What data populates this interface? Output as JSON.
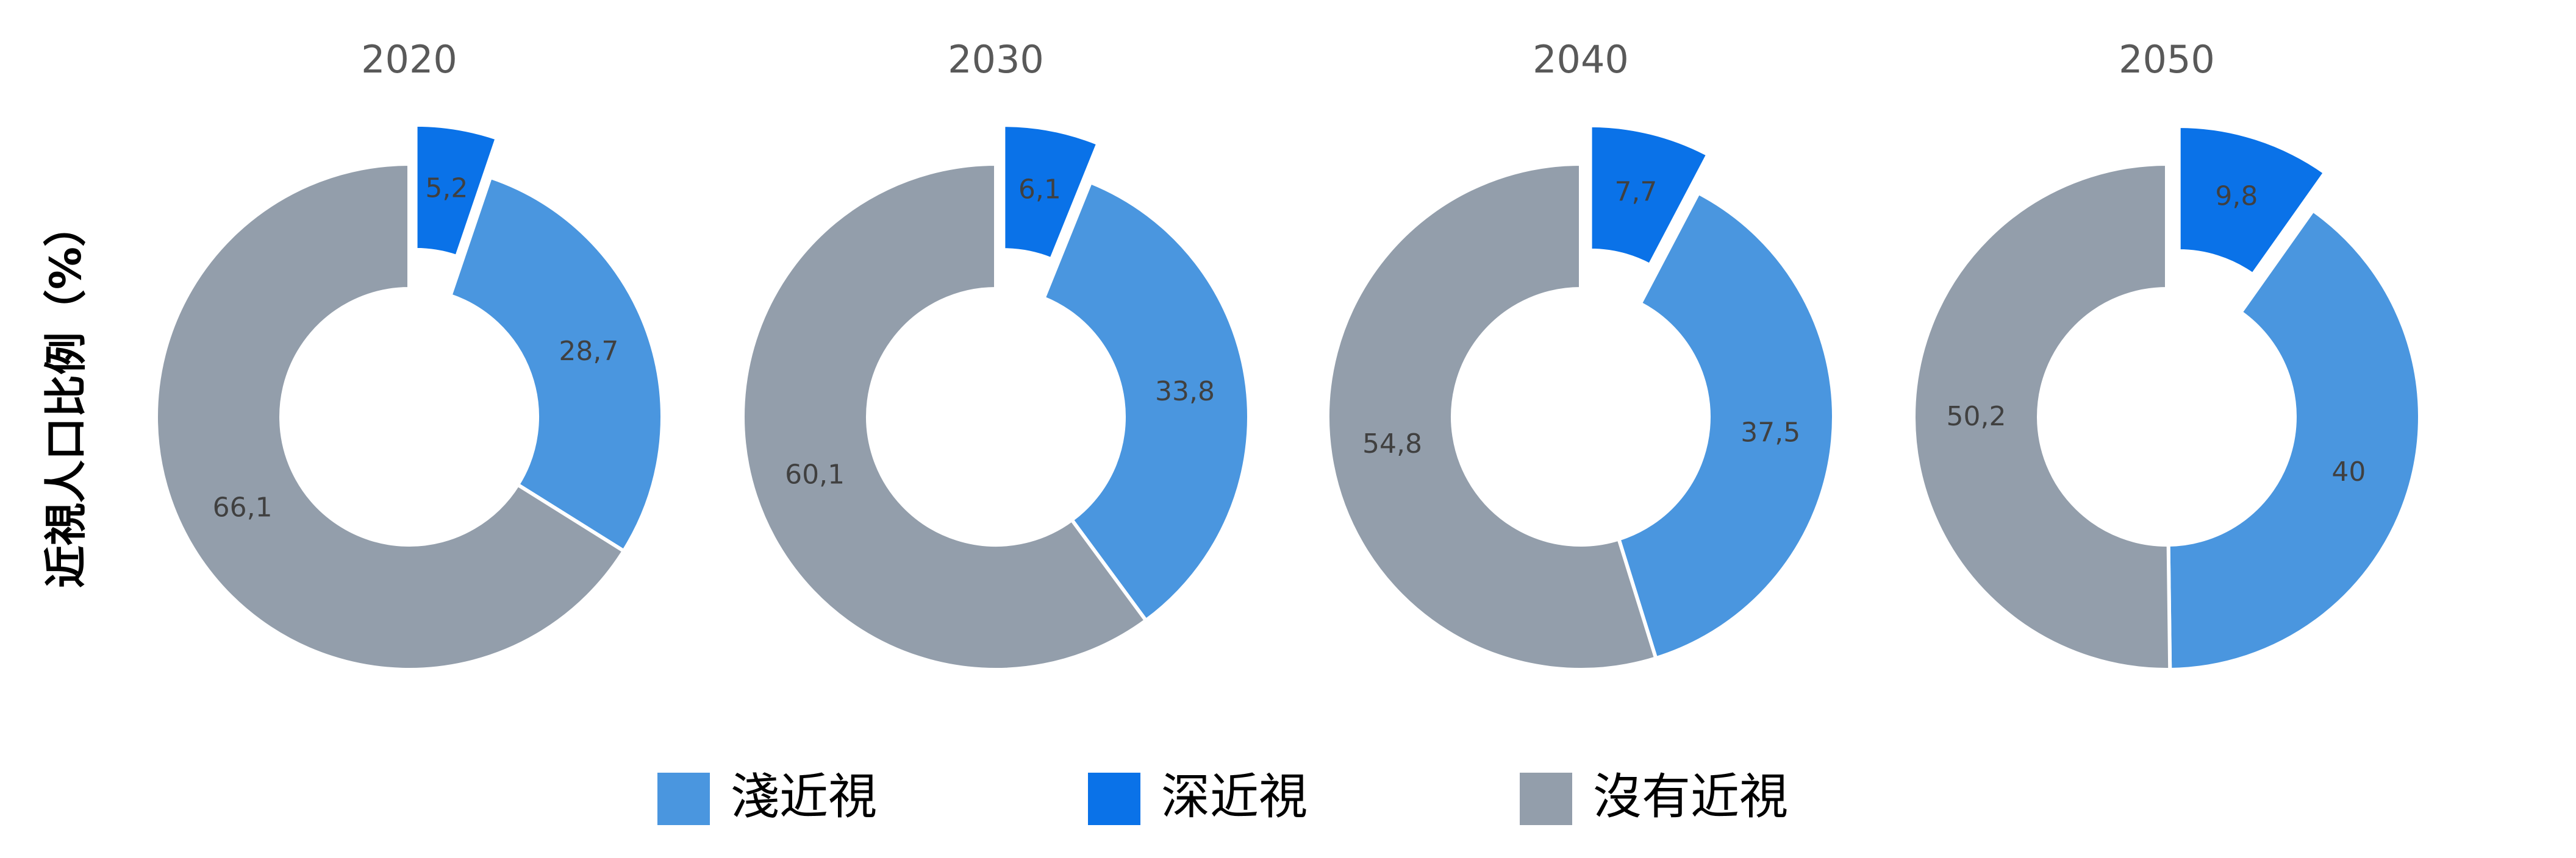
{
  "y_label": "近視人口比例（%）",
  "categories": [
    "淺近視",
    "深近視",
    "沒有近視"
  ],
  "colors": [
    "#4a96df",
    "#0a72e8",
    "#939eab"
  ],
  "chart_data": [
    {
      "type": "pie",
      "title": "2020",
      "values": [
        28.7,
        5.2,
        66.1
      ],
      "value_labels": [
        "28,7",
        "5,2",
        "66,1"
      ]
    },
    {
      "type": "pie",
      "title": "2030",
      "values": [
        33.8,
        6.1,
        60.1
      ],
      "value_labels": [
        "33,8",
        "6,1",
        "60,1"
      ]
    },
    {
      "type": "pie",
      "title": "2040",
      "values": [
        37.5,
        7.7,
        54.8
      ],
      "value_labels": [
        "37,5",
        "7,7",
        "54,8"
      ]
    },
    {
      "type": "pie",
      "title": "2050",
      "values": [
        40,
        9.8,
        50.2
      ],
      "value_labels": [
        "40",
        "9,8",
        "50,2"
      ]
    }
  ]
}
